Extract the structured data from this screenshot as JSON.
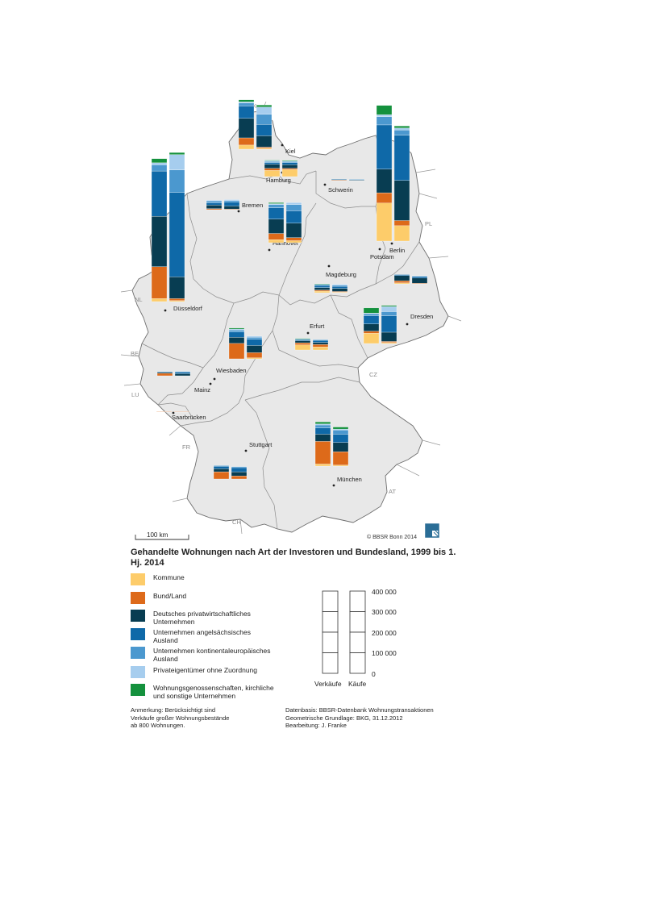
{
  "map_title": "Gehandelte Wohnungen nach Art der Investoren und Bundesland, 1999 bis 1. Hj. 2014",
  "scale_bar_label": "100 km",
  "copyright": "© BBSR Bonn 2014",
  "legend": [
    {
      "id": "kommune",
      "label": "Kommune",
      "color": "#fdcc6a"
    },
    {
      "id": "bund",
      "label": "Bund/Land",
      "color": "#dd6a1a"
    },
    {
      "id": "deutsch",
      "label": "Deutsches privatwirtschaftliches\nUnternehmen",
      "color": "#083d52"
    },
    {
      "id": "angel",
      "label": "Unternehmen angelsächsisches\nAusland",
      "color": "#0f69a8"
    },
    {
      "id": "kontinental",
      "label": "Unternehmen kontinentaleuropäisches\nAusland",
      "color": "#4b98cf"
    },
    {
      "id": "privat",
      "label": "Privateigentümer ohne Zuordnung",
      "color": "#a6cdee"
    },
    {
      "id": "genossen",
      "label": "Wohnungsgenossenschaften, kirchliche\nund sonstige Unternehmen",
      "color": "#14913d"
    }
  ],
  "scale_ticks": [
    "400 000",
    "300 000",
    "200 000",
    "100 000",
    "0"
  ],
  "scale_columns": [
    "Verkäufe",
    "Käufe"
  ],
  "note": "Anmerkung: Berücksichtigt sind\nVerkäufe großer Wohnungsbestände\nab 800 Wohnungen.",
  "source": "Datenbasis: BBSR-Datenbank Wohnungstransaktionen\nGeometrische Grundlage: BKG, 31.12.2012\nBearbeitung: J. Franke",
  "cities": [
    {
      "name": "Kiel"
    },
    {
      "name": "Hamburg"
    },
    {
      "name": "Schwerin"
    },
    {
      "name": "Bremen"
    },
    {
      "name": "Hannover"
    },
    {
      "name": "Berlin"
    },
    {
      "name": "Potsdam"
    },
    {
      "name": "Magdeburg"
    },
    {
      "name": "Düsseldorf"
    },
    {
      "name": "Dresden"
    },
    {
      "name": "Erfurt"
    },
    {
      "name": "Wiesbaden"
    },
    {
      "name": "Mainz"
    },
    {
      "name": "Saarbrücken"
    },
    {
      "name": "Stuttgart"
    },
    {
      "name": "München"
    }
  ],
  "countries": [
    "DK",
    "PL",
    "NL",
    "BE",
    "LU",
    "FR",
    "CZ",
    "AT",
    "CH"
  ],
  "scale_unit_per_100000": 100000,
  "states": [
    {
      "name": "Schleswig-Holstein",
      "verkaeufe": {
        "kommune": 20000,
        "bund": 35000,
        "deutsch": 95000,
        "angel": 60000,
        "kontinental": 15000,
        "privat": 5000,
        "genossen": 10000
      },
      "kaeufe": {
        "kommune": 5000,
        "bund": 5000,
        "deutsch": 55000,
        "angel": 55000,
        "kontinental": 50000,
        "privat": 35000,
        "genossen": 10000
      }
    },
    {
      "name": "Hamburg",
      "verkaeufe": {
        "kommune": 30000,
        "bund": 10000,
        "deutsch": 20000,
        "angel": 8000,
        "kontinental": 6000,
        "privat": 3000,
        "genossen": 3000
      },
      "kaeufe": {
        "kommune": 35000,
        "bund": 5000,
        "deutsch": 18000,
        "angel": 10000,
        "kontinental": 5000,
        "privat": 3000,
        "genossen": 3000
      }
    },
    {
      "name": "Mecklenburg-Vorpommern",
      "verkaeufe": {
        "kommune": 0,
        "bund": 3000,
        "deutsch": 2000,
        "angel": 3000,
        "kontinental": 0,
        "privat": 0,
        "genossen": 0
      },
      "kaeufe": {
        "kommune": 0,
        "bund": 0,
        "deutsch": 3000,
        "angel": 3000,
        "kontinental": 1000,
        "privat": 0,
        "genossen": 0
      }
    },
    {
      "name": "Bremen",
      "verkaeufe": {
        "kommune": 0,
        "bund": 5000,
        "deutsch": 18000,
        "angel": 10000,
        "kontinental": 10000,
        "privat": 3000,
        "genossen": 0
      },
      "kaeufe": {
        "kommune": 0,
        "bund": 3000,
        "deutsch": 15000,
        "angel": 18000,
        "kontinental": 8000,
        "privat": 5000,
        "genossen": 0
      }
    },
    {
      "name": "Niedersachsen",
      "verkaeufe": {
        "kommune": 15000,
        "bund": 30000,
        "deutsch": 70000,
        "angel": 55000,
        "kontinental": 15000,
        "privat": 5000,
        "genossen": 5000
      },
      "kaeufe": {
        "kommune": 10000,
        "bund": 15000,
        "deutsch": 70000,
        "angel": 60000,
        "kontinental": 30000,
        "privat": 10000,
        "genossen": 0
      }
    },
    {
      "name": "Berlin",
      "verkaeufe": {
        "kommune": 185000,
        "bund": 50000,
        "deutsch": 115000,
        "angel": 215000,
        "kontinental": 40000,
        "privat": 10000,
        "genossen": 45000
      },
      "kaeufe": {
        "kommune": 75000,
        "bund": 25000,
        "deutsch": 195000,
        "angel": 220000,
        "kontinental": 25000,
        "privat": 10000,
        "genossen": 10000
      }
    },
    {
      "name": "Sachsen-Anhalt",
      "verkaeufe": {
        "kommune": 8000,
        "bund": 5000,
        "deutsch": 12000,
        "angel": 10000,
        "kontinental": 5000,
        "privat": 0,
        "genossen": 3000
      },
      "kaeufe": {
        "kommune": 3000,
        "bund": 3000,
        "deutsch": 15000,
        "angel": 10000,
        "kontinental": 5000,
        "privat": 5000,
        "genossen": 0
      }
    },
    {
      "name": "Brandenburg",
      "verkaeufe": {
        "kommune": 5000,
        "bund": 10000,
        "deutsch": 25000,
        "angel": 5000,
        "kontinental": 0,
        "privat": 0,
        "genossen": 0
      },
      "kaeufe": {
        "kommune": 0,
        "bund": 3000,
        "deutsch": 25000,
        "angel": 8000,
        "kontinental": 0,
        "privat": 3000,
        "genossen": 0
      }
    },
    {
      "name": "Nordrhein-Westfalen",
      "verkaeufe": {
        "kommune": 15000,
        "bund": 155000,
        "deutsch": 245000,
        "angel": 220000,
        "kontinental": 30000,
        "privat": 10000,
        "genossen": 20000
      },
      "kaeufe": {
        "kommune": 5000,
        "bund": 10000,
        "deutsch": 105000,
        "angel": 410000,
        "kontinental": 110000,
        "privat": 75000,
        "genossen": 10000
      }
    },
    {
      "name": "Sachsen",
      "verkaeufe": {
        "kommune": 50000,
        "bund": 10000,
        "deutsch": 35000,
        "angel": 40000,
        "kontinental": 10000,
        "privat": 3000,
        "genossen": 25000
      },
      "kaeufe": {
        "kommune": 5000,
        "bund": 5000,
        "deutsch": 45000,
        "angel": 80000,
        "kontinental": 20000,
        "privat": 25000,
        "genossen": 5000
      }
    },
    {
      "name": "Thüringen",
      "verkaeufe": {
        "kommune": 25000,
        "bund": 10000,
        "deutsch": 10000,
        "angel": 5000,
        "kontinental": 3000,
        "privat": 0,
        "genossen": 3000
      },
      "kaeufe": {
        "kommune": 15000,
        "bund": 12000,
        "deutsch": 10000,
        "angel": 10000,
        "kontinental": 3000,
        "privat": 0,
        "genossen": 0
      }
    },
    {
      "name": "Hessen",
      "verkaeufe": {
        "kommune": 0,
        "bund": 75000,
        "deutsch": 30000,
        "angel": 25000,
        "kontinental": 10000,
        "privat": 5000,
        "genossen": 5000
      },
      "kaeufe": {
        "kommune": 5000,
        "bund": 25000,
        "deutsch": 35000,
        "angel": 30000,
        "kontinental": 10000,
        "privat": 5000,
        "genossen": 0
      }
    },
    {
      "name": "Rheinland-Pfalz",
      "verkaeufe": {
        "kommune": 0,
        "bund": 12000,
        "deutsch": 5000,
        "angel": 3000,
        "kontinental": 0,
        "privat": 0,
        "genossen": 0
      },
      "kaeufe": {
        "kommune": 0,
        "bund": 0,
        "deutsch": 10000,
        "angel": 8000,
        "kontinental": 3000,
        "privat": 0,
        "genossen": 0
      }
    },
    {
      "name": "Saarland",
      "verkaeufe": {
        "kommune": 0,
        "bund": 2000,
        "deutsch": 0,
        "angel": 0,
        "kontinental": 0,
        "privat": 0,
        "genossen": 0
      },
      "kaeufe": {
        "kommune": 0,
        "bund": 2000,
        "deutsch": 0,
        "angel": 0,
        "kontinental": 0,
        "privat": 0,
        "genossen": 0
      }
    },
    {
      "name": "Baden-Württemberg",
      "verkaeufe": {
        "kommune": 0,
        "bund": 35000,
        "deutsch": 15000,
        "angel": 12000,
        "kontinental": 3000,
        "privat": 0,
        "genossen": 0
      },
      "kaeufe": {
        "kommune": 0,
        "bund": 15000,
        "deutsch": 20000,
        "angel": 20000,
        "kontinental": 5000,
        "privat": 0,
        "genossen": 0
      }
    },
    {
      "name": "Bayern",
      "verkaeufe": {
        "kommune": 10000,
        "bund": 110000,
        "deutsch": 35000,
        "angel": 30000,
        "kontinental": 15000,
        "privat": 5000,
        "genossen": 10000
      },
      "kaeufe": {
        "kommune": 5000,
        "bund": 65000,
        "deutsch": 45000,
        "angel": 40000,
        "kontinental": 20000,
        "privat": 5000,
        "genossen": 10000
      }
    }
  ]
}
